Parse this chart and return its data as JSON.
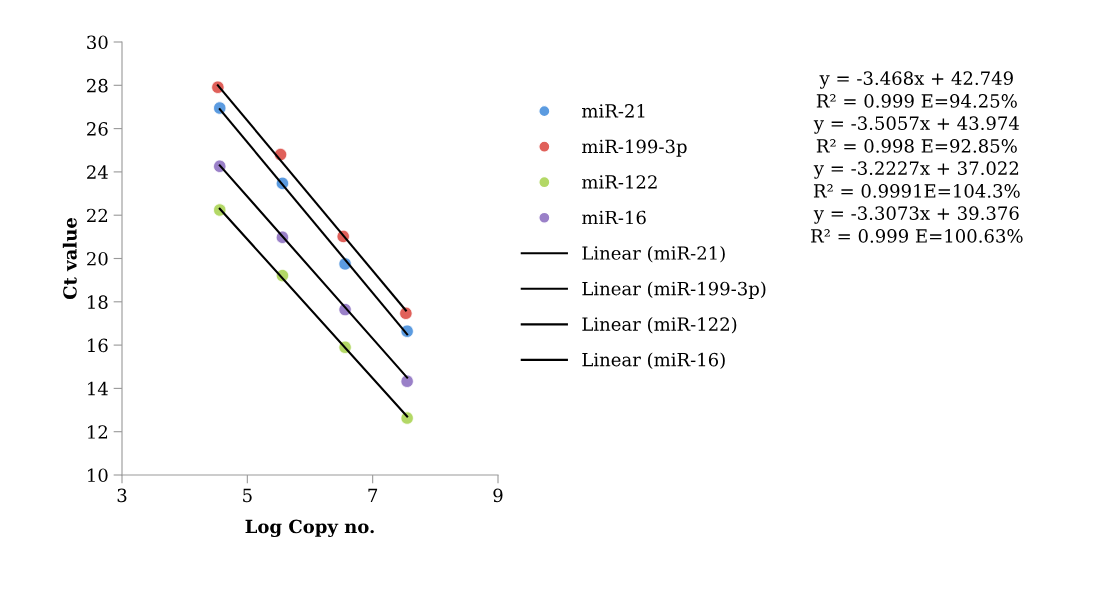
{
  "chart_data": {
    "type": "scatter",
    "xlabel": "Log Copy no.",
    "ylabel": "Ct value",
    "xlim": [
      3,
      9
    ],
    "xticks": [
      3,
      5,
      7,
      9
    ],
    "ylim": [
      10,
      30
    ],
    "yticks": [
      10,
      12,
      14,
      16,
      18,
      20,
      22,
      24,
      26,
      28,
      30
    ],
    "grid": false,
    "legend": "right",
    "marker": "circle",
    "series": [
      {
        "name": "miR-21",
        "color": "#5b9be0",
        "x": [
          4.56,
          5.56,
          6.56,
          7.55
        ],
        "values": [
          26.95,
          23.47,
          19.75,
          16.64
        ]
      },
      {
        "name": "miR-199-3p",
        "color": "#e0605a",
        "x": [
          4.53,
          5.53,
          6.53,
          7.53
        ],
        "values": [
          27.91,
          24.8,
          21.02,
          17.47
        ]
      },
      {
        "name": "miR-122",
        "color": "#b3d866",
        "x": [
          4.56,
          5.56,
          6.56,
          7.55
        ],
        "values": [
          22.24,
          19.21,
          15.9,
          12.63
        ]
      },
      {
        "name": "miR-16",
        "color": "#9a80c8",
        "x": [
          4.56,
          5.56,
          6.56,
          7.55
        ],
        "values": [
          24.26,
          20.98,
          17.64,
          14.33
        ]
      },
      {
        "name": "Linear (miR-21)",
        "type": "line",
        "color": "#000000",
        "marker": "none",
        "x": [
          4.56,
          7.55
        ],
        "values": [
          26.9,
          16.5
        ]
      },
      {
        "name": "Linear (miR-199-3p)",
        "type": "line",
        "color": "#000000",
        "marker": "none",
        "x": [
          4.53,
          7.53
        ],
        "values": [
          28.0,
          17.6
        ]
      },
      {
        "name": "Linear (miR-122)",
        "type": "line",
        "color": "#000000",
        "marker": "none",
        "x": [
          4.56,
          7.55
        ],
        "values": [
          22.3,
          12.7
        ]
      },
      {
        "name": "Linear (miR-16)",
        "type": "line",
        "color": "#000000",
        "marker": "none",
        "x": [
          4.56,
          7.55
        ],
        "values": [
          24.3,
          14.5
        ]
      }
    ],
    "annotations": [
      "y = -3.468x + 42.749",
      "R² = 0.999 E=94.25%",
      "y = -3.5057x + 43.974",
      "R² = 0.998 E=92.85%",
      "y = -3.2227x + 37.022",
      "R² = 0.9991E=104.3%",
      "y = -3.3073x + 39.376",
      "R² = 0.999 E=100.63%"
    ]
  }
}
